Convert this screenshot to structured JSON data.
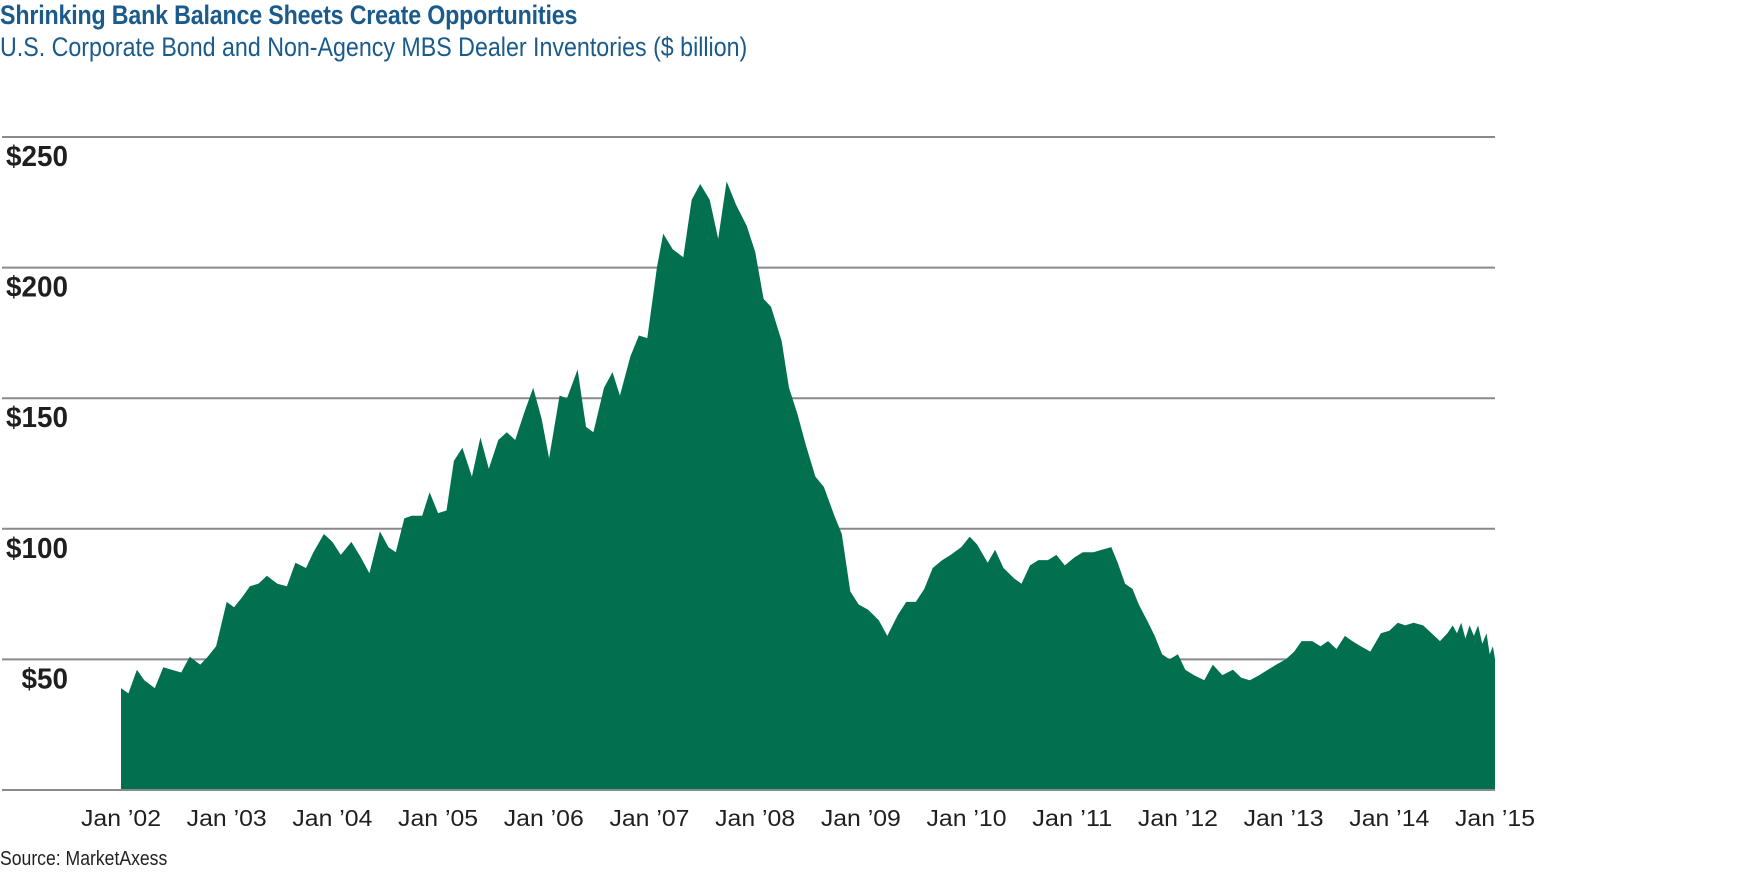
{
  "chart_data": {
    "type": "area",
    "title": "Shrinking Bank Balance Sheets Create Opportunities",
    "subtitle": "U.S. Corporate Bond and Non-Agency MBS Dealer Inventories ($ billion)",
    "source": "Source: MarketAxess",
    "fill_color": "#02704f",
    "grid_color": "#8a8a8a",
    "grid": true,
    "ylim": [
      0,
      250
    ],
    "xlim": [
      2002.0,
      2015.0
    ],
    "y_ticks": [
      {
        "value": 50,
        "label": "$50"
      },
      {
        "value": 100,
        "label": "$100"
      },
      {
        "value": 150,
        "label": "$150"
      },
      {
        "value": 200,
        "label": "$200"
      },
      {
        "value": 250,
        "label": "$250"
      }
    ],
    "x_ticks": [
      {
        "value": 2002,
        "label": "Jan ’02"
      },
      {
        "value": 2003,
        "label": "Jan ’03"
      },
      {
        "value": 2004,
        "label": "Jan ’04"
      },
      {
        "value": 2005,
        "label": "Jan ’05"
      },
      {
        "value": 2006,
        "label": "Jan ’06"
      },
      {
        "value": 2007,
        "label": "Jan ’07"
      },
      {
        "value": 2008,
        "label": "Jan ’08"
      },
      {
        "value": 2009,
        "label": "Jan ’09"
      },
      {
        "value": 2010,
        "label": "Jan ’10"
      },
      {
        "value": 2011,
        "label": "Jan ’11"
      },
      {
        "value": 2012,
        "label": "Jan ’12"
      },
      {
        "value": 2013,
        "label": "Jan ’13"
      },
      {
        "value": 2014,
        "label": "Jan ’14"
      },
      {
        "value": 2015,
        "label": "Jan ’15"
      }
    ],
    "series": [
      {
        "points": [
          [
            2002.0,
            39
          ],
          [
            2002.07,
            37
          ],
          [
            2002.15,
            46
          ],
          [
            2002.22,
            42
          ],
          [
            2002.32,
            39
          ],
          [
            2002.4,
            47
          ],
          [
            2002.48,
            46
          ],
          [
            2002.57,
            45
          ],
          [
            2002.65,
            51
          ],
          [
            2002.75,
            48
          ],
          [
            2002.82,
            51
          ],
          [
            2002.9,
            55
          ],
          [
            2003.0,
            72
          ],
          [
            2003.07,
            70
          ],
          [
            2003.15,
            74
          ],
          [
            2003.22,
            78
          ],
          [
            2003.3,
            79
          ],
          [
            2003.38,
            82
          ],
          [
            2003.48,
            79
          ],
          [
            2003.57,
            78
          ],
          [
            2003.65,
            87
          ],
          [
            2003.75,
            85
          ],
          [
            2003.82,
            91
          ],
          [
            2003.92,
            98
          ],
          [
            2004.0,
            95
          ],
          [
            2004.08,
            90
          ],
          [
            2004.18,
            95
          ],
          [
            2004.27,
            89
          ],
          [
            2004.35,
            83
          ],
          [
            2004.45,
            99
          ],
          [
            2004.53,
            93
          ],
          [
            2004.6,
            91
          ],
          [
            2004.68,
            104
          ],
          [
            2004.75,
            105
          ],
          [
            2004.85,
            105
          ],
          [
            2004.92,
            114
          ],
          [
            2005.0,
            106
          ],
          [
            2005.08,
            107
          ],
          [
            2005.15,
            126
          ],
          [
            2005.23,
            131
          ],
          [
            2005.32,
            120
          ],
          [
            2005.4,
            135
          ],
          [
            2005.48,
            123
          ],
          [
            2005.57,
            134
          ],
          [
            2005.65,
            137
          ],
          [
            2005.73,
            134
          ],
          [
            2005.82,
            145
          ],
          [
            2005.9,
            154
          ],
          [
            2005.98,
            142
          ],
          [
            2006.05,
            127
          ],
          [
            2006.15,
            151
          ],
          [
            2006.22,
            150
          ],
          [
            2006.32,
            161
          ],
          [
            2006.4,
            139
          ],
          [
            2006.47,
            137
          ],
          [
            2006.57,
            154
          ],
          [
            2006.65,
            160
          ],
          [
            2006.72,
            151
          ],
          [
            2006.82,
            166
          ],
          [
            2006.9,
            174
          ],
          [
            2006.98,
            173
          ],
          [
            2007.07,
            200
          ],
          [
            2007.13,
            213
          ],
          [
            2007.22,
            207
          ],
          [
            2007.32,
            204
          ],
          [
            2007.4,
            226
          ],
          [
            2007.48,
            232
          ],
          [
            2007.57,
            226
          ],
          [
            2007.65,
            211
          ],
          [
            2007.73,
            233
          ],
          [
            2007.82,
            224
          ],
          [
            2007.92,
            216
          ],
          [
            2008.0,
            206
          ],
          [
            2008.08,
            188
          ],
          [
            2008.15,
            185
          ],
          [
            2008.25,
            172
          ],
          [
            2008.32,
            154
          ],
          [
            2008.4,
            144
          ],
          [
            2008.48,
            132
          ],
          [
            2008.57,
            120
          ],
          [
            2008.65,
            116
          ],
          [
            2008.75,
            105
          ],
          [
            2008.82,
            98
          ],
          [
            2008.9,
            76
          ],
          [
            2008.98,
            71
          ],
          [
            2009.07,
            69
          ],
          [
            2009.17,
            65
          ],
          [
            2009.25,
            59
          ],
          [
            2009.35,
            67
          ],
          [
            2009.43,
            72
          ],
          [
            2009.52,
            72
          ],
          [
            2009.6,
            77
          ],
          [
            2009.68,
            85
          ],
          [
            2009.77,
            88
          ],
          [
            2009.85,
            90
          ],
          [
            2009.95,
            93
          ],
          [
            2010.03,
            97
          ],
          [
            2010.1,
            94
          ],
          [
            2010.2,
            87
          ],
          [
            2010.27,
            92
          ],
          [
            2010.35,
            85
          ],
          [
            2010.45,
            81
          ],
          [
            2010.52,
            79
          ],
          [
            2010.6,
            86
          ],
          [
            2010.68,
            88
          ],
          [
            2010.77,
            88
          ],
          [
            2010.85,
            90
          ],
          [
            2010.93,
            86
          ],
          [
            2011.02,
            89
          ],
          [
            2011.1,
            91
          ],
          [
            2011.2,
            91
          ],
          [
            2011.28,
            92
          ],
          [
            2011.37,
            93
          ],
          [
            2011.43,
            87
          ],
          [
            2011.5,
            79
          ],
          [
            2011.57,
            77
          ],
          [
            2011.63,
            71
          ],
          [
            2011.72,
            64
          ],
          [
            2011.78,
            59
          ],
          [
            2011.85,
            52
          ],
          [
            2011.92,
            50
          ],
          [
            2012.0,
            52
          ],
          [
            2012.07,
            46
          ],
          [
            2012.15,
            44
          ],
          [
            2012.25,
            42
          ],
          [
            2012.33,
            48
          ],
          [
            2012.42,
            44
          ],
          [
            2012.52,
            46
          ],
          [
            2012.6,
            43
          ],
          [
            2012.68,
            42
          ],
          [
            2012.77,
            44
          ],
          [
            2012.85,
            46
          ],
          [
            2012.93,
            48
          ],
          [
            2013.02,
            50
          ],
          [
            2013.1,
            53
          ],
          [
            2013.17,
            57
          ],
          [
            2013.27,
            57
          ],
          [
            2013.35,
            55
          ],
          [
            2013.42,
            57
          ],
          [
            2013.5,
            54
          ],
          [
            2013.58,
            59
          ],
          [
            2013.65,
            57
          ],
          [
            2013.73,
            55
          ],
          [
            2013.82,
            53
          ],
          [
            2013.92,
            60
          ],
          [
            2014.0,
            61
          ],
          [
            2014.08,
            64
          ],
          [
            2014.15,
            63
          ],
          [
            2014.23,
            64
          ],
          [
            2014.32,
            63
          ],
          [
            2014.4,
            60
          ],
          [
            2014.48,
            57
          ],
          [
            2014.55,
            60
          ],
          [
            2014.6,
            63
          ],
          [
            2014.64,
            60
          ],
          [
            2014.68,
            64
          ],
          [
            2014.72,
            58
          ],
          [
            2014.76,
            63
          ],
          [
            2014.8,
            59
          ],
          [
            2014.84,
            63
          ],
          [
            2014.88,
            56
          ],
          [
            2014.92,
            60
          ],
          [
            2014.95,
            52
          ],
          [
            2014.98,
            55
          ],
          [
            2015.0,
            50
          ]
        ]
      }
    ]
  }
}
